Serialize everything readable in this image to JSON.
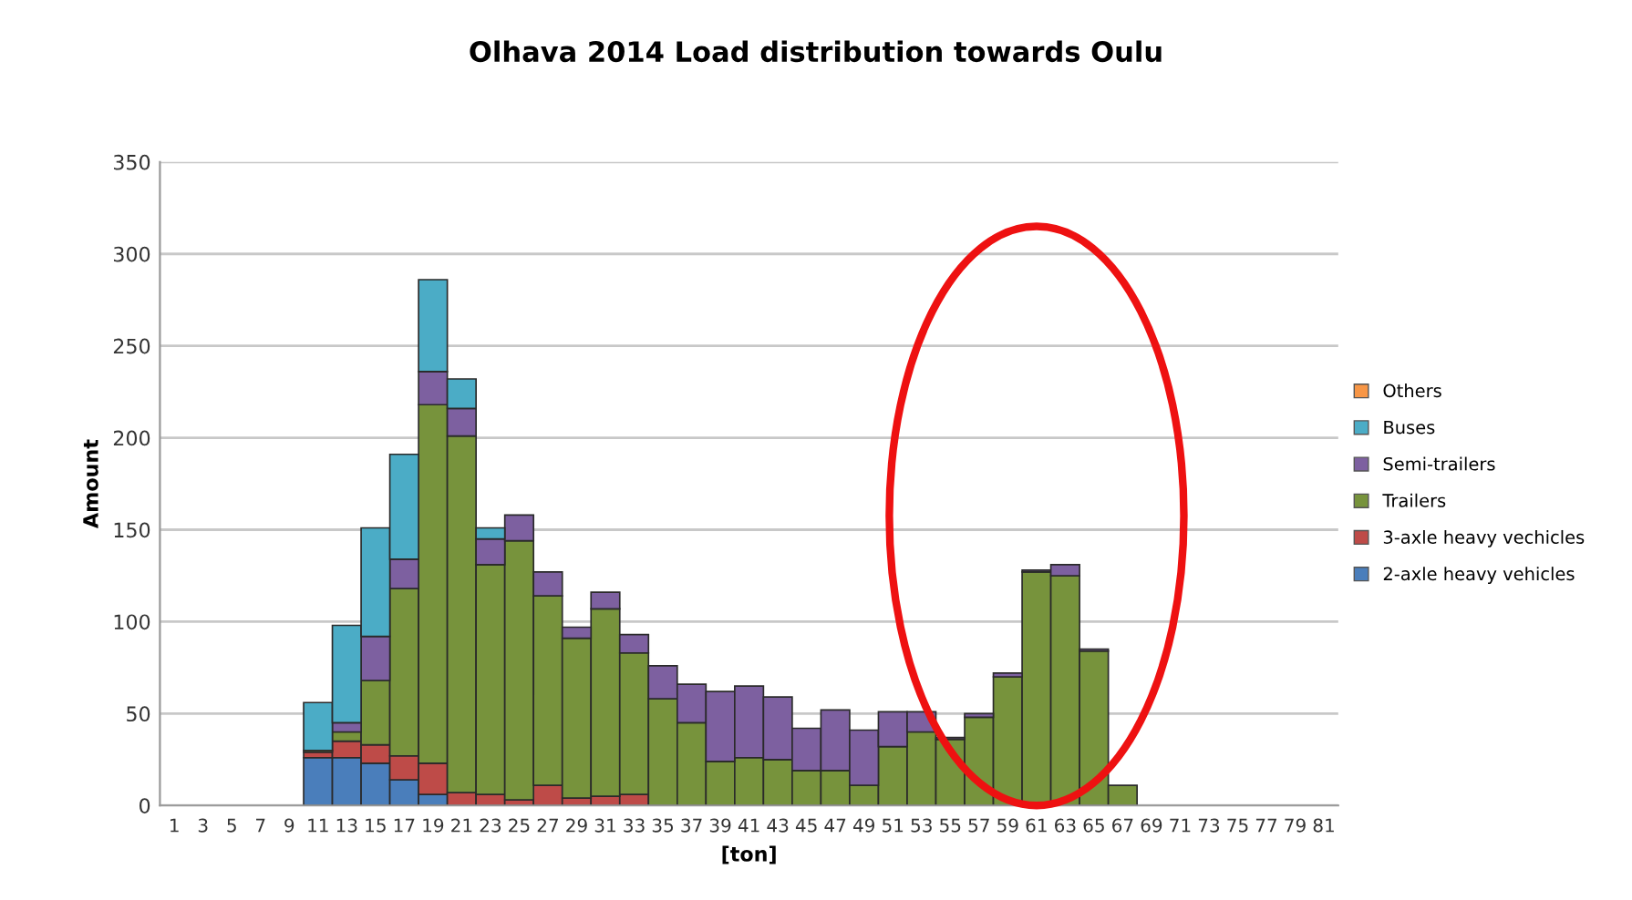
{
  "chart_data": {
    "type": "bar",
    "title": "Olhava 2014 Load distribution towards Oulu",
    "xlabel": "[ton]",
    "ylabel": "Amount",
    "categories": [
      "1",
      "3",
      "5",
      "7",
      "9",
      "11",
      "13",
      "15",
      "17",
      "19",
      "21",
      "23",
      "25",
      "27",
      "29",
      "31",
      "33",
      "35",
      "37",
      "39",
      "41",
      "43",
      "45",
      "47",
      "49",
      "51",
      "53",
      "55",
      "57",
      "59",
      "61",
      "63",
      "65",
      "67",
      "69",
      "71",
      "73",
      "75",
      "77",
      "79",
      "81"
    ],
    "stacked": true,
    "series": [
      {
        "name": "2-axle heavy vehicles",
        "color": "#4a7ebb",
        "values": [
          0,
          0,
          0,
          0,
          0,
          26,
          26,
          23,
          14,
          6,
          0,
          0,
          0,
          0,
          0,
          0,
          0,
          0,
          0,
          0,
          0,
          0,
          0,
          0,
          0,
          0,
          0,
          0,
          0,
          0,
          0,
          0,
          0,
          0,
          0,
          0,
          0,
          0,
          0,
          0,
          0
        ]
      },
      {
        "name": "3-axle heavy vechicles",
        "color": "#be4b48",
        "values": [
          0,
          0,
          0,
          0,
          0,
          3,
          9,
          10,
          13,
          17,
          7,
          6,
          3,
          11,
          4,
          5,
          6,
          0,
          0,
          0,
          0,
          0,
          0,
          0,
          0,
          0,
          0,
          0,
          0,
          0,
          0,
          0,
          0,
          0,
          0,
          0,
          0,
          0,
          0,
          0,
          0
        ]
      },
      {
        "name": "Trailers",
        "color": "#77933c",
        "values": [
          0,
          0,
          0,
          0,
          0,
          1,
          5,
          35,
          91,
          195,
          194,
          125,
          141,
          103,
          87,
          102,
          77,
          58,
          45,
          24,
          26,
          25,
          19,
          19,
          11,
          32,
          40,
          36,
          48,
          70,
          127,
          125,
          84,
          11,
          0,
          0,
          0,
          0,
          0,
          0,
          0
        ]
      },
      {
        "name": "Semi-trailers",
        "color": "#7d60a0",
        "values": [
          0,
          0,
          0,
          0,
          0,
          0,
          5,
          24,
          16,
          18,
          15,
          14,
          14,
          13,
          6,
          9,
          10,
          18,
          21,
          38,
          39,
          34,
          23,
          33,
          30,
          19,
          11,
          1,
          2,
          2,
          1,
          6,
          1,
          0,
          0,
          0,
          0,
          0,
          0,
          0,
          0
        ]
      },
      {
        "name": "Buses",
        "color": "#4bacc6",
        "values": [
          0,
          0,
          0,
          0,
          0,
          26,
          53,
          59,
          57,
          50,
          16,
          6,
          0,
          0,
          0,
          0,
          0,
          0,
          0,
          0,
          0,
          0,
          0,
          0,
          0,
          0,
          0,
          0,
          0,
          0,
          0,
          0,
          0,
          0,
          0,
          0,
          0,
          0,
          0,
          0,
          0
        ]
      },
      {
        "name": "Others",
        "color": "#f79646",
        "values": [
          0,
          0,
          0,
          0,
          0,
          0,
          0,
          0,
          0,
          0,
          0,
          0,
          0,
          0,
          0,
          0,
          0,
          0,
          0,
          0,
          0,
          0,
          0,
          0,
          0,
          0,
          0,
          0,
          0,
          0,
          0,
          0,
          0,
          0,
          0,
          0,
          0,
          0,
          0,
          0,
          0
        ]
      }
    ],
    "ylim": [
      0,
      350
    ],
    "yticks": [
      0,
      50,
      100,
      150,
      200,
      250,
      300,
      350
    ],
    "grid": "y",
    "legend": "right"
  }
}
